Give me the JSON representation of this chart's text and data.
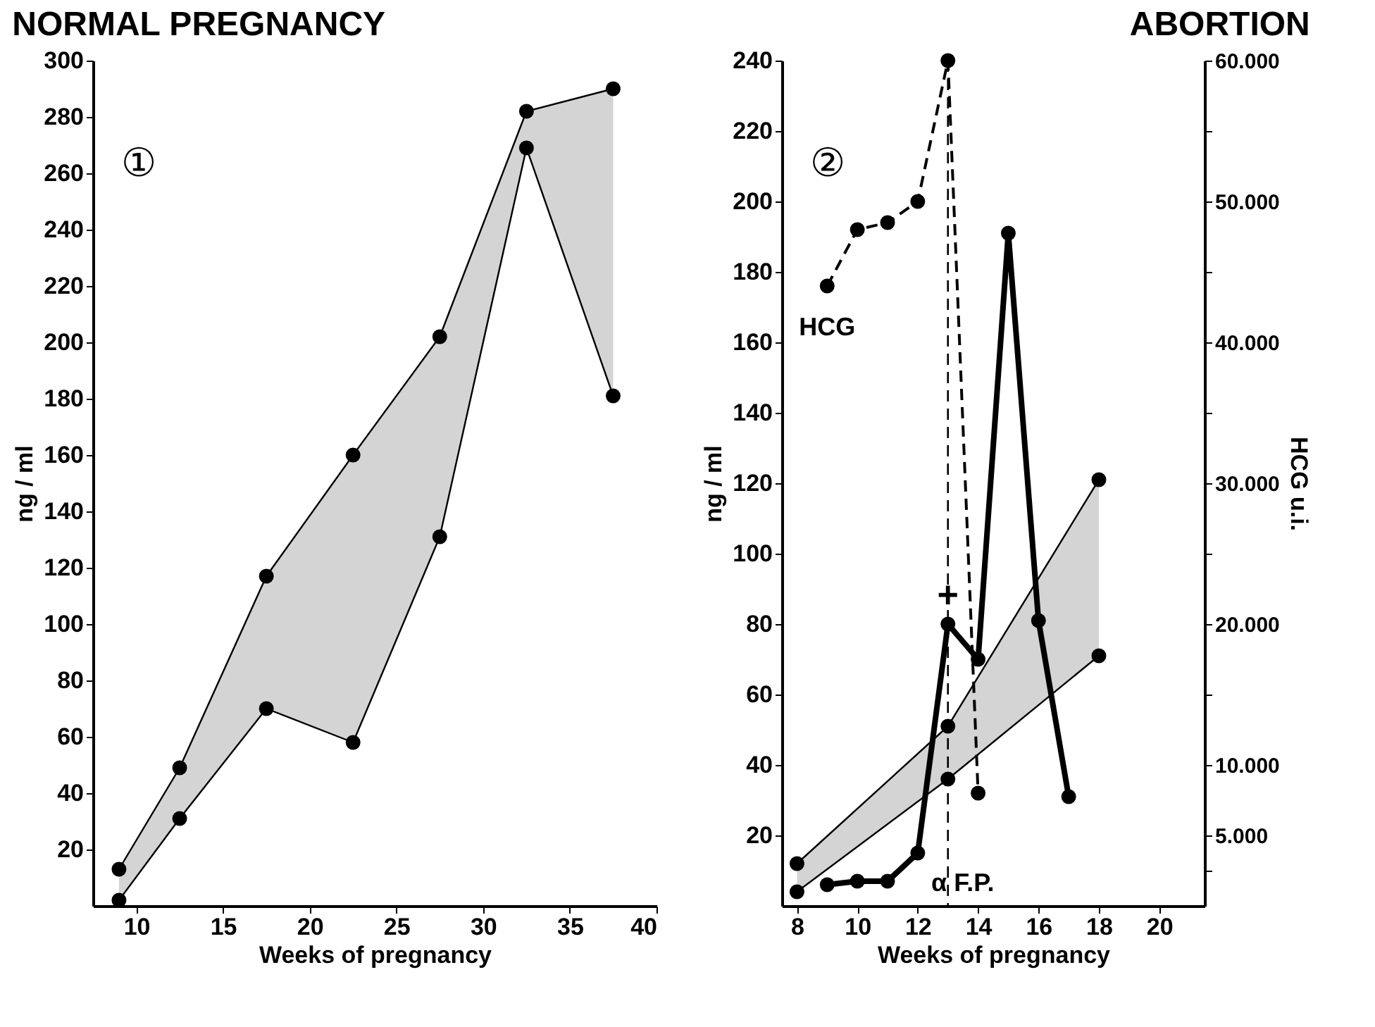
{
  "chart_data": [
    {
      "type": "line",
      "title": "NORMAL PREGNANCY",
      "xlabel": "Weeks of pregnancy",
      "ylabel": "ng / ml",
      "x": [
        9,
        12.5,
        17.5,
        22.5,
        27.5,
        32.5,
        37.5
      ],
      "series": [
        {
          "color": "#000000",
          "values": [
            13,
            49,
            117,
            160,
            202,
            282,
            290
          ],
          "lower": [
            2,
            31,
            70,
            58,
            131,
            269,
            181
          ],
          "upper": [
            13,
            49,
            117,
            160,
            202,
            282,
            290
          ]
        },
        {
          "color": "#000000",
          "values": [
            2,
            31,
            70,
            58,
            131,
            269,
            181
          ]
        }
      ],
      "xlim": [
        7.5,
        40
      ],
      "xticks": [
        10,
        15,
        20,
        25,
        30,
        35,
        40
      ],
      "ylim": [
        0,
        300
      ],
      "yticks": [
        20,
        40,
        60,
        80,
        100,
        120,
        140,
        160,
        180,
        200,
        220,
        240,
        260,
        280,
        300
      ],
      "annotations": [
        "①"
      ],
      "grid": false,
      "marker": "circle"
    },
    {
      "type": "line",
      "title": "ABORTION",
      "xlabel": "Weeks of pregnancy",
      "ylabel": "ng / ml",
      "y2label": "HCG u.i.",
      "series": [
        {
          "color": "#000000",
          "x": [
            8,
            13,
            18
          ],
          "values": [
            12,
            51,
            121
          ],
          "lower": [
            4,
            36,
            71
          ],
          "upper": [
            12,
            51,
            121
          ]
        },
        {
          "color": "#000000",
          "x": [
            8,
            13,
            18
          ],
          "values": [
            4,
            36,
            71
          ]
        },
        {
          "name": "α F.P.",
          "color": "#000000",
          "x": [
            9,
            10,
            11,
            12,
            13,
            14,
            15,
            16,
            17
          ],
          "values": [
            6,
            7,
            7,
            15,
            80,
            70,
            191,
            81,
            31
          ]
        },
        {
          "name": "HCG",
          "color": "#000000",
          "axis": "y2",
          "line_style": "dashed",
          "x": [
            9,
            10,
            11,
            12,
            13,
            14
          ],
          "values": [
            44000,
            48000,
            48500,
            50000,
            60000,
            8000
          ]
        }
      ],
      "xlim": [
        7.5,
        21.5
      ],
      "xticks": [
        8,
        10,
        12,
        14,
        16,
        18,
        20
      ],
      "ylim": [
        0,
        240
      ],
      "yticks": [
        20,
        40,
        60,
        80,
        100,
        120,
        140,
        160,
        180,
        200,
        220,
        240
      ],
      "y2lim": [
        0,
        60000
      ],
      "y2ticks": [
        {
          "value": 2500,
          "label": null
        },
        {
          "value": 5000,
          "label": "5.000"
        },
        {
          "value": 10000,
          "label": "10.000"
        },
        {
          "value": 15000,
          "label": null
        },
        {
          "value": 20000,
          "label": "20.000"
        },
        {
          "value": 25000,
          "label": null
        },
        {
          "value": 30000,
          "label": "30.000"
        },
        {
          "value": 35000,
          "label": null
        },
        {
          "value": 40000,
          "label": "40.000"
        },
        {
          "value": 45000,
          "label": null
        },
        {
          "value": 50000,
          "label": "50.000"
        },
        {
          "value": 55000,
          "label": null
        },
        {
          "value": 60000,
          "label": "60.000"
        }
      ],
      "ref_lines": [
        {
          "axis": "x",
          "value": 13,
          "line_style": "dashed"
        }
      ],
      "annotations": [
        "②",
        {
          "text": "+",
          "x": 13,
          "y": 88
        }
      ],
      "grid": false,
      "marker": "circle"
    }
  ]
}
